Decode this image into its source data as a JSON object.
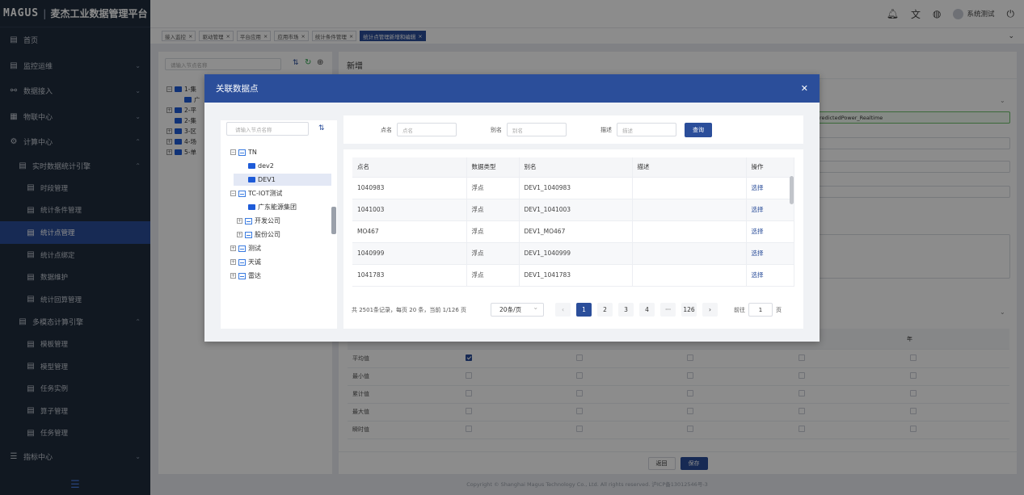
{
  "brand": {
    "logo": "MAGUS",
    "title": "麦杰工业数据管理平台"
  },
  "header": {
    "user": "系统测试"
  },
  "menu": {
    "home": "首页",
    "monitoring": "监控运维",
    "data_access": "数据接入",
    "iot_center": "物联中心",
    "compute_center": "计算中心",
    "realtime_engine": "实时数据统计引擎",
    "period_mgmt": "时段管理",
    "condition_mgmt": "统计条件管理",
    "point_mgmt": "统计点管理",
    "point_bind": "统计点绑定",
    "data_maint": "数据维护",
    "recalc_mgmt": "统计回算管理",
    "multimodal_engine": "多模态计算引擎",
    "template_mgmt": "模板管理",
    "model_mgmt": "模型管理",
    "task_instance": "任务实例",
    "operator_mgmt": "算子管理",
    "task_mgmt": "任务管理",
    "indicator_center": "指标中心"
  },
  "tabs": [
    "接入监控",
    "驱动管理",
    "平台应用",
    "应用市场",
    "统计条件管理",
    "统计点管理新增和编辑"
  ],
  "left_panel": {
    "search_placeholder": "请输入节点名称",
    "nodes": [
      "1-集",
      "广",
      "2-平",
      "2-集",
      "3-区",
      "4-场",
      "5-单"
    ]
  },
  "content": {
    "title": "新增",
    "field_value": "redictedPower_Realtime",
    "col_year": "年",
    "stats_rows": [
      "平均值",
      "最小值",
      "累计值",
      "最大值",
      "瞬时值"
    ],
    "back": "返回",
    "save": "保存"
  },
  "copyright": "Copyright © Shanghai Magus Technology Co., Ltd. All rights reserved.   沪ICP备13012546号-3",
  "modal": {
    "title": "关联数据点",
    "tree_search_placeholder": "请输入节点名称",
    "tree": {
      "tn": "TN",
      "dev2": "dev2",
      "dev1": "DEV1",
      "tc_iot": "TC-IOT测试",
      "gd_energy": "广东能源集团",
      "dev_company": "开发公司",
      "share_company": "股份公司",
      "test": "测试",
      "tiancheng": "天诚",
      "leida": "雷达"
    },
    "filters": {
      "point_label": "点名",
      "point_placeholder": "点名",
      "alias_label": "别名",
      "alias_placeholder": "别名",
      "desc_label": "描述",
      "desc_placeholder": "描述",
      "query": "查询"
    },
    "table": {
      "headers": [
        "点名",
        "数据类型",
        "别名",
        "描述",
        "操作"
      ],
      "rows": [
        {
          "name": "1040983",
          "type": "浮点",
          "alias": "DEV1_1040983",
          "desc": "",
          "action": "选择"
        },
        {
          "name": "1041003",
          "type": "浮点",
          "alias": "DEV1_1041003",
          "desc": "",
          "action": "选择"
        },
        {
          "name": "MO467",
          "type": "浮点",
          "alias": "DEV1_MO467",
          "desc": "",
          "action": "选择"
        },
        {
          "name": "1040999",
          "type": "浮点",
          "alias": "DEV1_1040999",
          "desc": "",
          "action": "选择"
        },
        {
          "name": "1041783",
          "type": "浮点",
          "alias": "DEV1_1041783",
          "desc": "",
          "action": "选择"
        }
      ]
    },
    "pager": {
      "summary": "共 2501条记录，每页 20 条，当前 1/126 页",
      "page_size": "20条/页",
      "pages": [
        "1",
        "2",
        "3",
        "4",
        "···",
        "126"
      ],
      "goto_label": "前往",
      "goto_value": "1",
      "goto_suffix": "页"
    }
  }
}
